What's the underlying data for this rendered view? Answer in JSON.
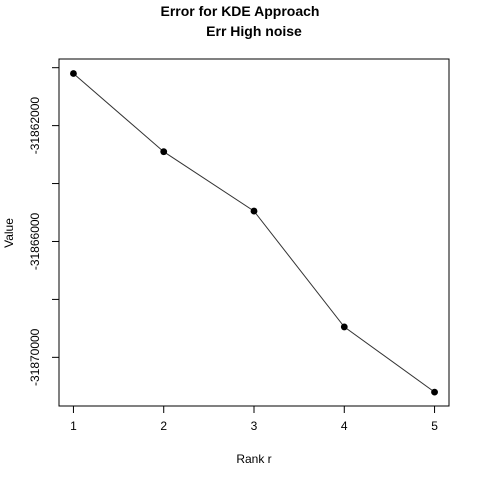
{
  "chart_data": {
    "type": "line",
    "title": "Error for KDE Approach",
    "subtitle": "Err High noise",
    "xlabel": "Rank r",
    "ylabel": "Value",
    "x": [
      1,
      2,
      3,
      4,
      5
    ],
    "values": [
      -31860200,
      -31862900,
      -31864950,
      -31868950,
      -31871200
    ],
    "xticks": [
      1,
      2,
      3,
      4,
      5
    ],
    "xtick_labels": [
      "1",
      "2",
      "3",
      "4",
      "5"
    ],
    "yticks_major": [
      -31862000,
      -31866000,
      -31870000
    ],
    "ytick_labels": [
      "-31862000",
      "-31866000",
      "-31870000"
    ],
    "yticks_minor": [
      -31860000,
      -31864000,
      -31868000
    ],
    "xlim": [
      0.84,
      5.16
    ],
    "ylim": [
      -31871680,
      -31859700
    ],
    "grid": false,
    "legend": "none",
    "line_color": "#333333",
    "point_color": "#000000"
  }
}
